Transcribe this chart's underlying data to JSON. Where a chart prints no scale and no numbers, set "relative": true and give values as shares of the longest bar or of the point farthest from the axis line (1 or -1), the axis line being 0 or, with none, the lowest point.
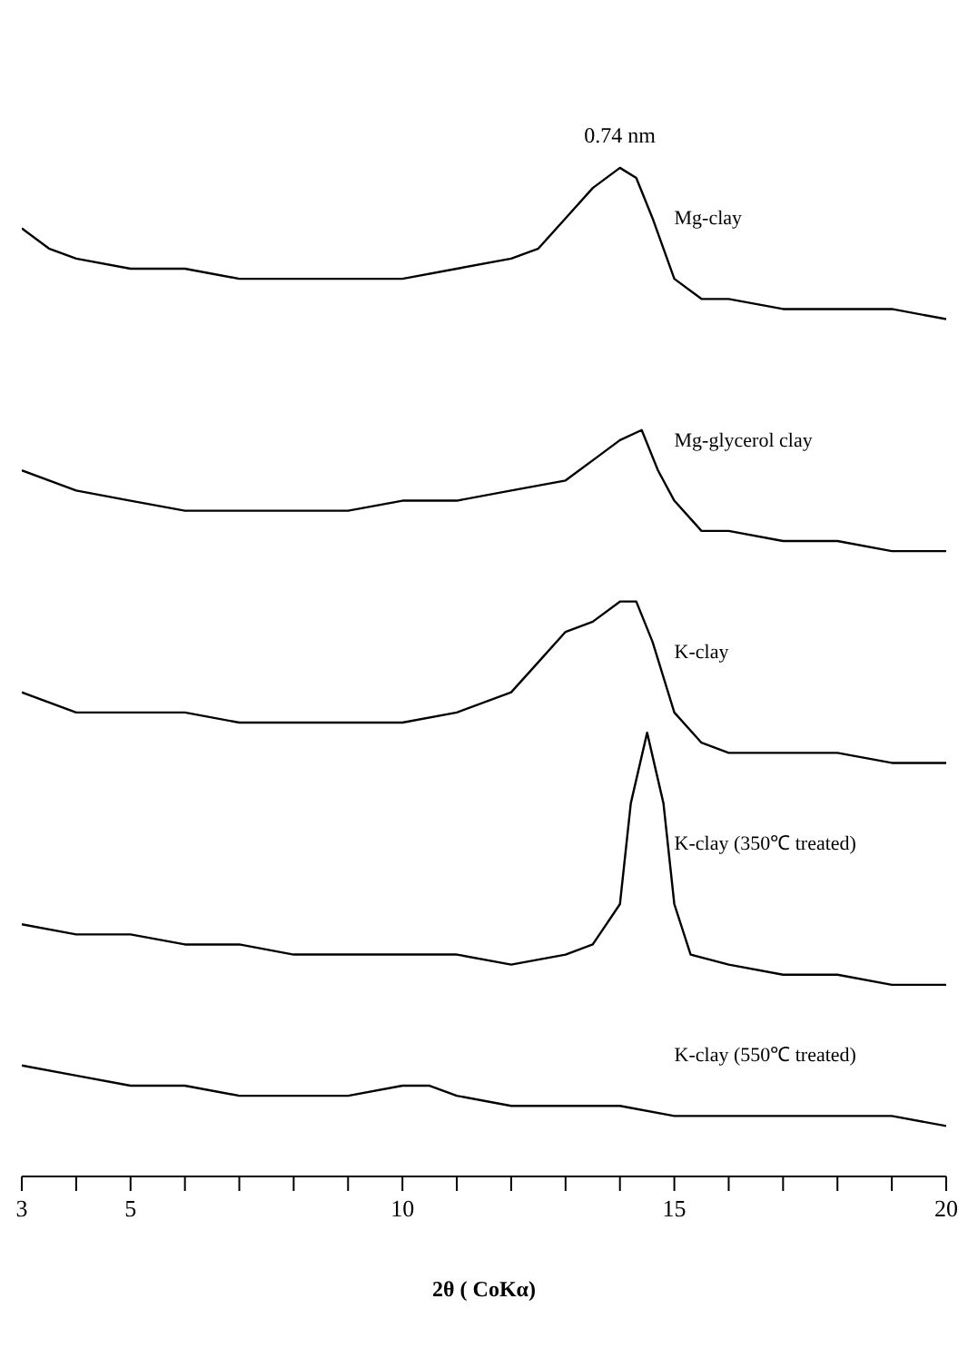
{
  "chart_data": {
    "type": "line",
    "relative": true,
    "tick_labels": "x",
    "xlabel": "2θ ( CoKα)",
    "xlim": [
      3,
      20
    ],
    "xticks": [
      3,
      {
        "value": 4,
        "label": null
      },
      5,
      {
        "value": 6,
        "label": null
      },
      {
        "value": 7,
        "label": null
      },
      {
        "value": 8,
        "label": null
      },
      {
        "value": 9,
        "label": null
      },
      10,
      {
        "value": 11,
        "label": null
      },
      {
        "value": 12,
        "label": null
      },
      {
        "value": 13,
        "label": null
      },
      {
        "value": 14,
        "label": null
      },
      15,
      {
        "value": 16,
        "label": null
      },
      {
        "value": 17,
        "label": null
      },
      {
        "value": 18,
        "label": null
      },
      {
        "value": 19,
        "label": null
      },
      20
    ],
    "annotations": [
      {
        "text": "0.74 nm",
        "x": 14,
        "y": 1
      }
    ],
    "series": [
      {
        "name": "Mg-clay",
        "color": "#000000",
        "x": [
          3,
          3.5,
          4,
          5,
          6,
          7,
          8,
          9,
          10,
          11,
          12,
          12.5,
          13,
          13.5,
          14,
          14.3,
          14.6,
          15,
          15.5,
          16,
          17,
          18,
          19,
          20
        ],
        "values": [
          0.94,
          0.92,
          0.91,
          0.9,
          0.9,
          0.89,
          0.89,
          0.89,
          0.89,
          0.9,
          0.91,
          0.92,
          0.95,
          0.98,
          1,
          0.99,
          0.95,
          0.89,
          0.87,
          0.87,
          0.86,
          0.86,
          0.86,
          0.85
        ]
      },
      {
        "name": "Mg-glycerol clay",
        "color": "#000000",
        "x": [
          3,
          4,
          5,
          6,
          7,
          8,
          9,
          10,
          11,
          12,
          13,
          13.5,
          14,
          14.4,
          14.7,
          15,
          15.5,
          16,
          17,
          18,
          19,
          20
        ],
        "values": [
          0.7,
          0.68,
          0.67,
          0.66,
          0.66,
          0.66,
          0.66,
          0.67,
          0.67,
          0.68,
          0.69,
          0.71,
          0.73,
          0.74,
          0.7,
          0.67,
          0.64,
          0.64,
          0.63,
          0.63,
          0.62,
          0.62
        ]
      },
      {
        "name": "K-clay",
        "color": "#000000",
        "x": [
          3,
          4,
          5,
          6,
          7,
          8,
          9,
          10,
          11,
          12,
          12.5,
          13,
          13.5,
          14,
          14.3,
          14.6,
          15,
          15.5,
          16,
          17,
          18,
          19,
          20
        ],
        "values": [
          0.48,
          0.46,
          0.46,
          0.46,
          0.45,
          0.45,
          0.45,
          0.45,
          0.46,
          0.48,
          0.51,
          0.54,
          0.55,
          0.57,
          0.57,
          0.53,
          0.46,
          0.43,
          0.42,
          0.42,
          0.42,
          0.41,
          0.41
        ]
      },
      {
        "name": "K-clay (350℃ treated)",
        "color": "#000000",
        "x": [
          3,
          4,
          5,
          6,
          7,
          8,
          9,
          10,
          11,
          12,
          13,
          13.5,
          14,
          14.2,
          14.5,
          14.8,
          15,
          15.3,
          16,
          17,
          18,
          19,
          20
        ],
        "values": [
          0.25,
          0.24,
          0.24,
          0.23,
          0.23,
          0.22,
          0.22,
          0.22,
          0.22,
          0.21,
          0.22,
          0.23,
          0.27,
          0.37,
          0.44,
          0.37,
          0.27,
          0.22,
          0.21,
          0.2,
          0.2,
          0.19,
          0.19
        ]
      },
      {
        "name": "K-clay (550℃ treated)",
        "color": "#000000",
        "x": [
          3,
          4,
          5,
          6,
          7,
          8,
          9,
          10,
          10.5,
          11,
          12,
          13,
          14,
          15,
          16,
          17,
          18,
          19,
          20
        ],
        "values": [
          0.11,
          0.1,
          0.09,
          0.09,
          0.08,
          0.08,
          0.08,
          0.09,
          0.09,
          0.08,
          0.07,
          0.07,
          0.07,
          0.06,
          0.06,
          0.06,
          0.06,
          0.06,
          0.05
        ]
      }
    ]
  }
}
